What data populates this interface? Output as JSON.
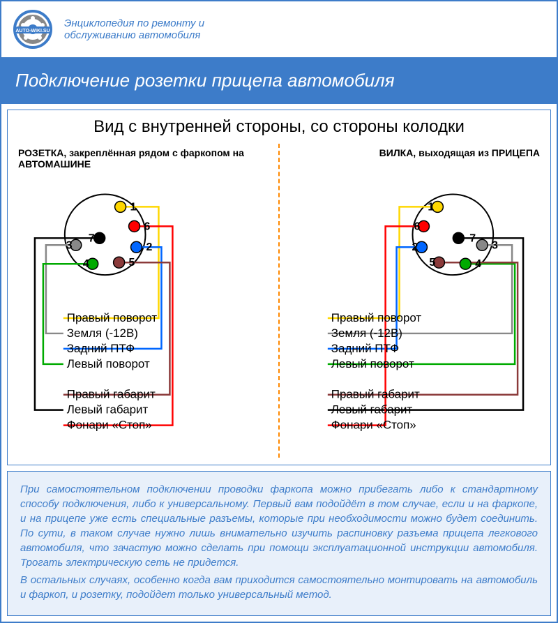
{
  "header": {
    "logo_text": "AUTO-WIKI.SU",
    "tagline": "Энциклопедия по ремонту и обслуживанию автомобиля"
  },
  "title": "Подключение розетки прицепа автомобиля",
  "diagram": {
    "main_title": "Вид с внутренней стороны, со стороны колодки",
    "left_subtitle": "РОЗЕТКА, закреплённая рядом с фаркопом на АВТОМАШИНЕ",
    "right_subtitle": "ВИЛКА, выходящая из ПРИЦЕПА",
    "pins": [
      {
        "n": "1",
        "color": "#ffd700",
        "label": "Правый поворот"
      },
      {
        "n": "2",
        "color": "#0066ff",
        "label": "Задний ПТФ"
      },
      {
        "n": "3",
        "color": "#888888",
        "label": "Земля (-12В)"
      },
      {
        "n": "4",
        "color": "#00aa00",
        "label": "Левый поворот"
      },
      {
        "n": "5",
        "color": "#8b3a3a",
        "label": "Правый габарит"
      },
      {
        "n": "6",
        "color": "#ff0000",
        "label": "Фонари «Стоп»"
      },
      {
        "n": "7",
        "color": "#000000",
        "label": "Левый габарит"
      }
    ],
    "label_order_top": [
      "Правый поворот",
      "Земля (-12В)",
      "Задний ПТФ",
      "Левый поворот"
    ],
    "label_order_bottom": [
      "Правый габарит",
      "Левый габарит",
      "Фонари «Стоп»"
    ]
  },
  "info": {
    "p1": "При самостоятельном подключении проводки фаркопа можно прибегать либо к стандартному способу подключения, либо к универсальному. Первый вам подойдёт в том случае, если и на фаркопе, и на прицепе уже есть специальные разъемы, которые при необходимости можно будет соединить. По сути, в таком случае нужно лишь внимательно изучить распиновку разъема прицепа легкового автомобиля, что зачастую можно сделать при помощи эксплуатационной инструкции автомобиля. Трогать электрическую сеть не придется.",
    "p2": "В остальных случаях, особенно когда вам приходится самостоятельно монтировать на автомобиль и фаркоп, и розетку, подойдет только универсальный метод."
  },
  "colors": {
    "primary": "#3d7cc9",
    "bg_light": "#e8f0fa",
    "divider": "#ff8800"
  }
}
